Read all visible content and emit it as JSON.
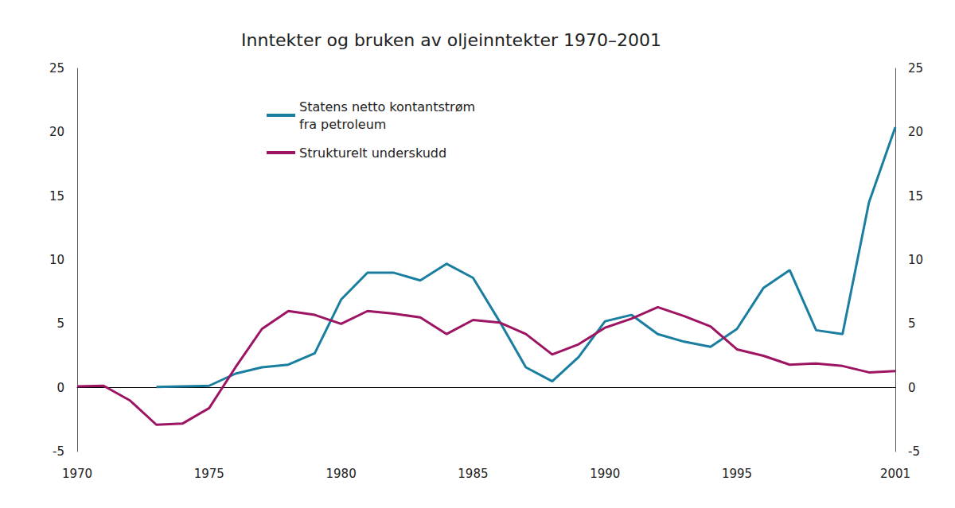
{
  "chart_data": {
    "type": "line",
    "title": "Inntekter og bruken av oljeinntekter 1970–2001",
    "x": [
      1970,
      1971,
      1972,
      1973,
      1974,
      1975,
      1976,
      1977,
      1978,
      1979,
      1980,
      1981,
      1982,
      1983,
      1984,
      1985,
      1986,
      1987,
      1988,
      1989,
      1990,
      1991,
      1992,
      1993,
      1994,
      1995,
      1996,
      1997,
      1998,
      1999,
      2000,
      2001
    ],
    "series": [
      {
        "name": "Statens netto kontantstrøm\nfra petroleum",
        "color": "#1a7ea0",
        "values": [
          null,
          null,
          null,
          0.05,
          0.1,
          0.15,
          1.1,
          1.6,
          1.8,
          2.7,
          6.9,
          9.0,
          9.0,
          8.4,
          9.7,
          8.6,
          5.2,
          1.6,
          0.5,
          2.4,
          5.2,
          5.7,
          4.2,
          3.6,
          3.2,
          4.6,
          7.8,
          9.2,
          4.5,
          4.2,
          14.5,
          20.4
        ]
      },
      {
        "name": "Strukturelt underskudd",
        "color": "#9c1462",
        "values": [
          0.1,
          0.15,
          -1.0,
          -2.9,
          -2.8,
          -1.6,
          1.6,
          4.6,
          6.0,
          5.7,
          5.0,
          6.0,
          5.8,
          5.5,
          4.2,
          5.3,
          5.1,
          4.2,
          2.6,
          3.4,
          4.7,
          5.4,
          6.3,
          5.6,
          4.8,
          3.0,
          2.5,
          1.8,
          1.9,
          1.7,
          1.2,
          1.3
        ]
      }
    ],
    "xlim": [
      1970,
      2001
    ],
    "xticks": [
      1970,
      1975,
      1980,
      1985,
      1990,
      1995,
      2001
    ],
    "ylim": [
      -5,
      25
    ],
    "yticks": [
      -5,
      0,
      5,
      10,
      15,
      20,
      25
    ],
    "y2lim": [
      -5,
      25
    ],
    "y2ticks": [
      -5,
      0,
      5,
      10,
      15,
      20,
      25
    ],
    "grid": false,
    "legend": "upper left"
  }
}
